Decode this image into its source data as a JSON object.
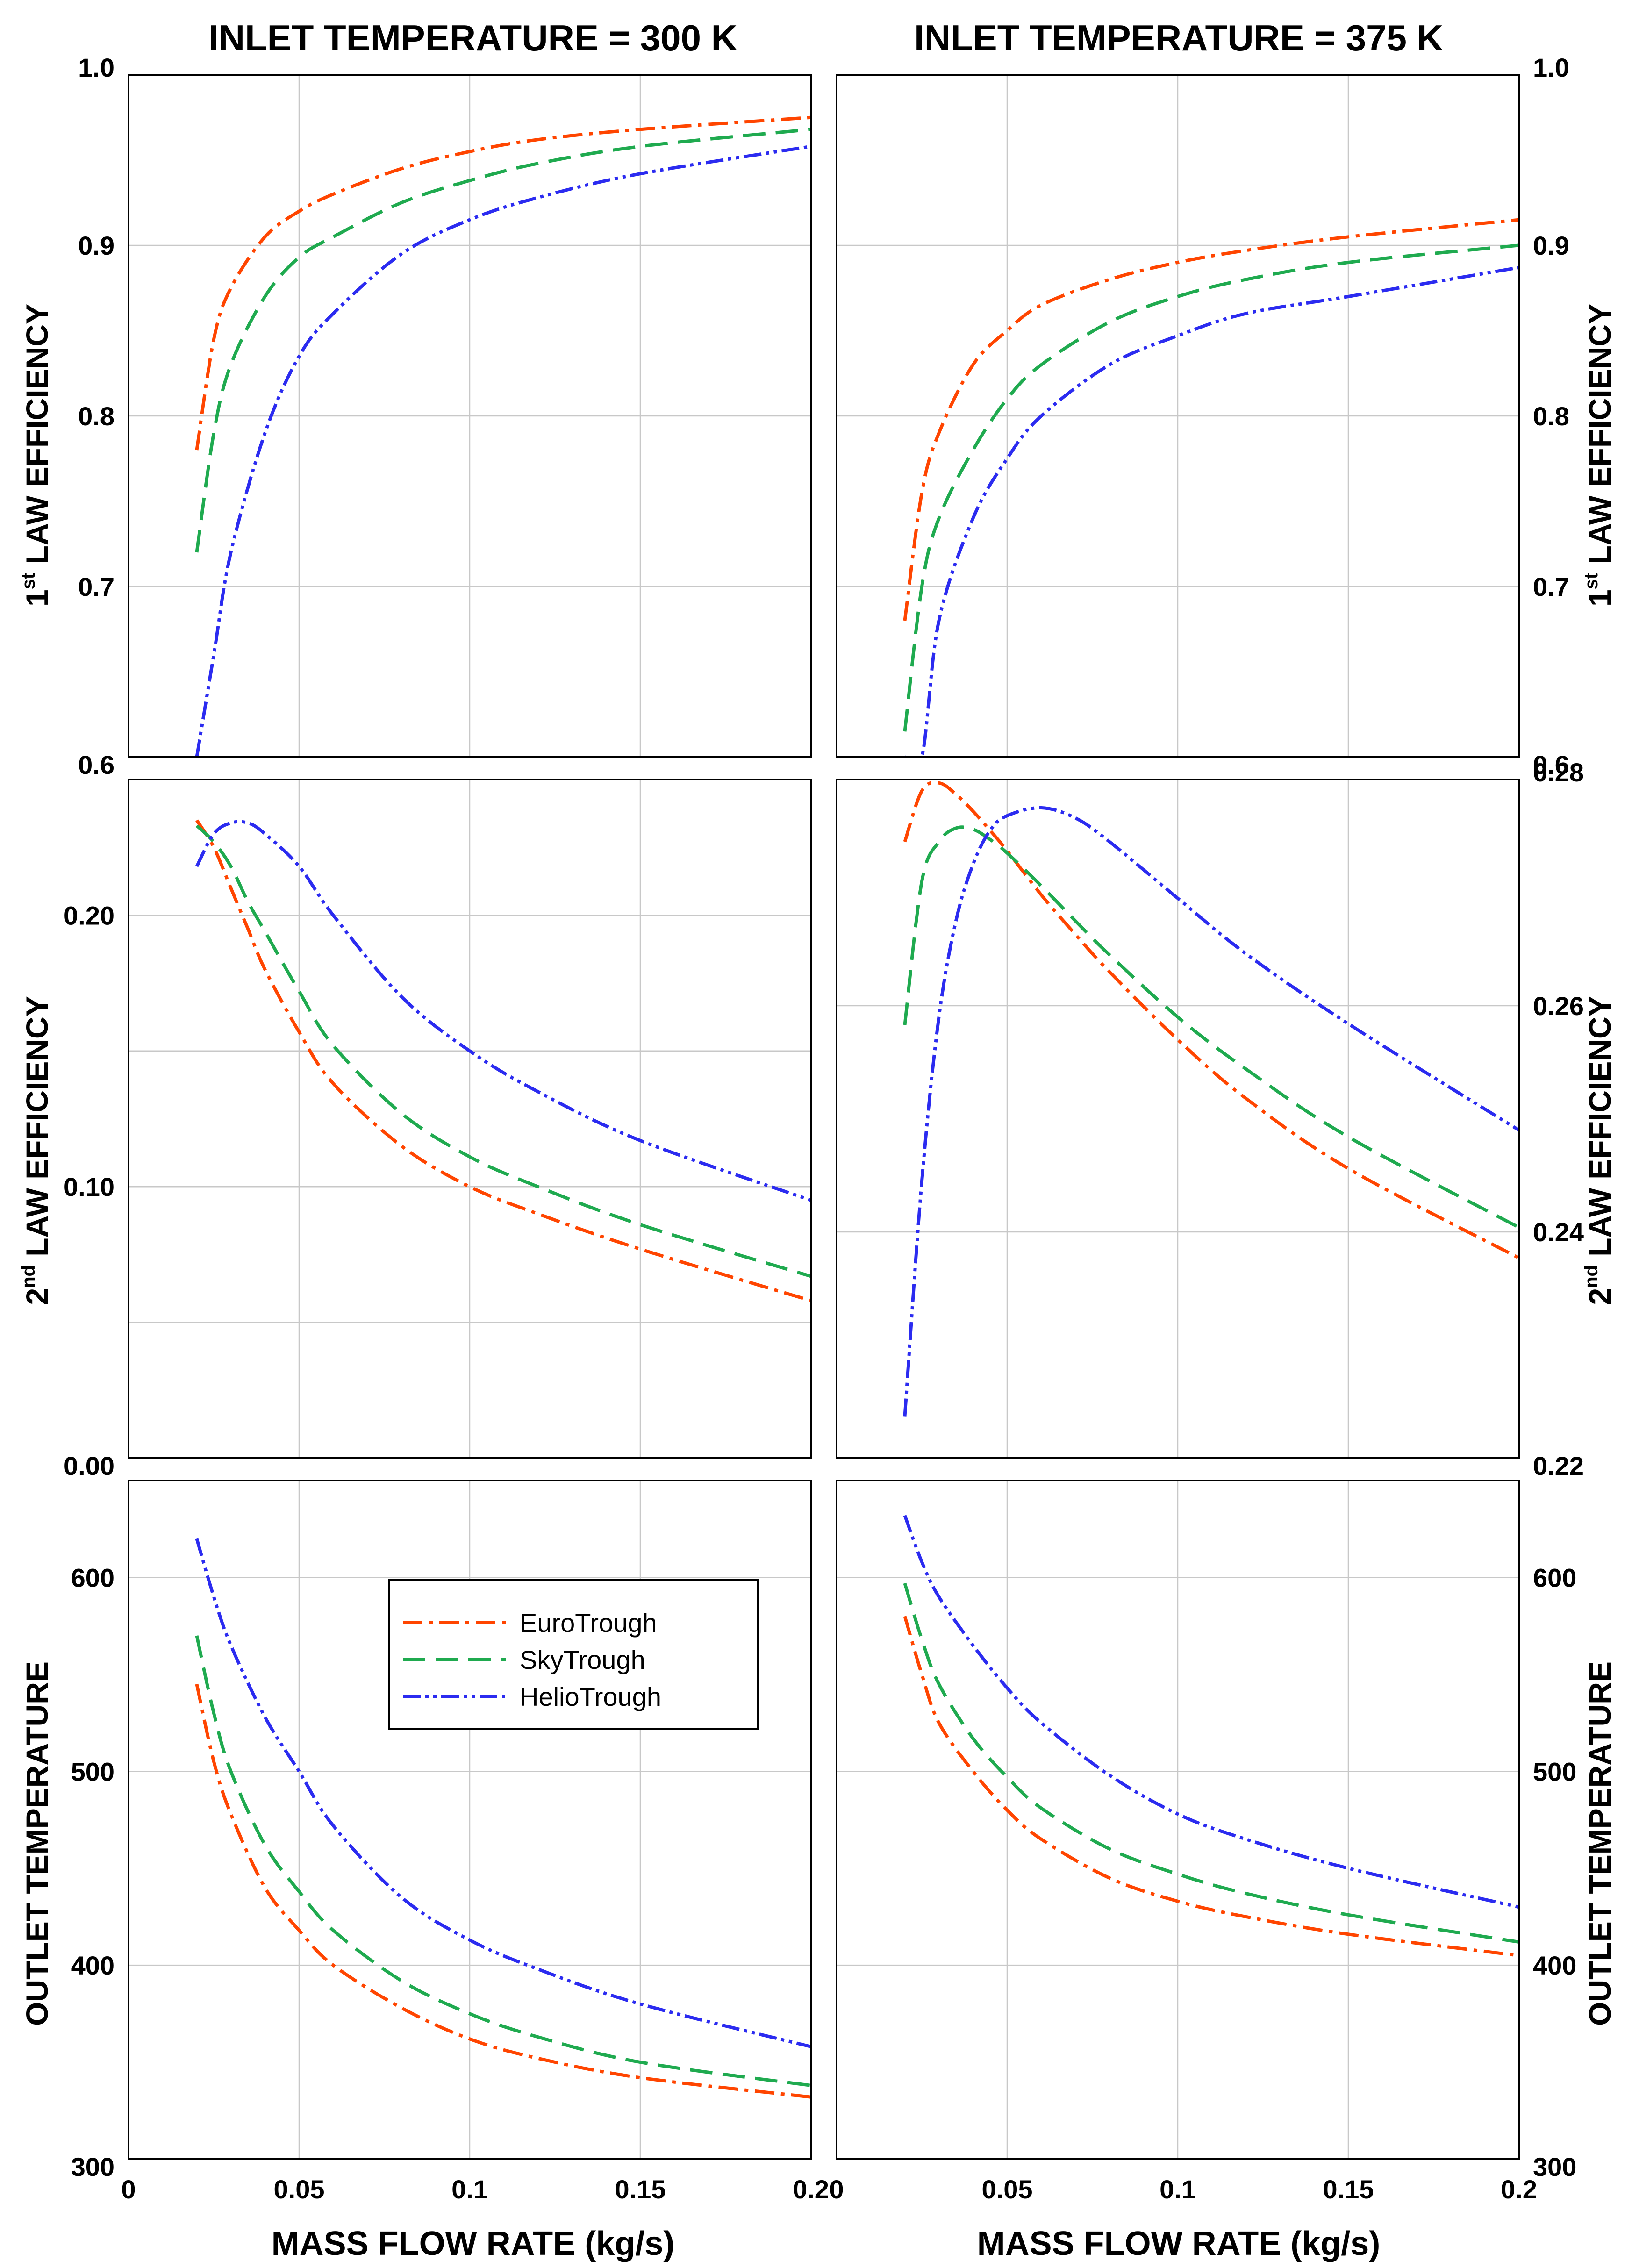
{
  "figure": {
    "col_titles": [
      "INLET TEMPERATURE = 300 K",
      "INLET TEMPERATURE = 375 K"
    ],
    "xlabel": "MASS FLOW RATE (kg/s)",
    "row_labels": [
      {
        "prefix": "1",
        "sup": "st",
        "rest": " LAW EFFICIENCY"
      },
      {
        "prefix": "2",
        "sup": "nd",
        "rest": " LAW EFFICIENCY"
      },
      {
        "prefix": "",
        "sup": "",
        "rest": "OUTLET TEMPERATURE"
      }
    ]
  },
  "series_colors": {
    "EuroTrough": "#ff4500",
    "SkyTrough": "#1faa4f",
    "HelioTrough": "#2b2bf0"
  },
  "legend": {
    "entries": [
      "EuroTrough",
      "SkyTrough",
      "HelioTrough"
    ],
    "location": "upper-center of bottom-left panel"
  },
  "chart_data": [
    {
      "type": "line",
      "panel": "top-left",
      "title": "INLET TEMPERATURE = 300 K",
      "xlabel": "",
      "ylabel": "1st LAW EFFICIENCY",
      "xlim": [
        0,
        0.2
      ],
      "ylim": [
        0.6,
        1.0
      ],
      "xticks": [
        0,
        0.05,
        0.1,
        0.15,
        0.2
      ],
      "xtick_labels": [],
      "yticks": [
        0.6,
        0.7,
        0.8,
        0.9,
        1.0
      ],
      "ytick_labels": [
        "0.6",
        "0.7",
        "0.8",
        "0.9",
        "1.0"
      ],
      "ytick_side": "left",
      "x": [
        0.02,
        0.025,
        0.03,
        0.04,
        0.05,
        0.06,
        0.08,
        0.1,
        0.12,
        0.15,
        0.2
      ],
      "series": [
        {
          "name": "EuroTrough",
          "values": [
            0.78,
            0.845,
            0.875,
            0.905,
            0.92,
            0.93,
            0.945,
            0.955,
            0.962,
            0.968,
            0.975
          ]
        },
        {
          "name": "SkyTrough",
          "values": [
            0.72,
            0.79,
            0.83,
            0.87,
            0.893,
            0.905,
            0.925,
            0.938,
            0.948,
            0.958,
            0.968
          ]
        },
        {
          "name": "HelioTrough",
          "values": [
            0.6,
            0.66,
            0.72,
            0.79,
            0.835,
            0.86,
            0.895,
            0.915,
            0.928,
            0.942,
            0.958
          ]
        }
      ]
    },
    {
      "type": "line",
      "panel": "top-right",
      "title": "INLET TEMPERATURE = 375 K",
      "xlabel": "",
      "ylabel": "1st LAW EFFICIENCY",
      "xlim": [
        0,
        0.2
      ],
      "ylim": [
        0.6,
        1.0
      ],
      "xticks": [
        0,
        0.05,
        0.1,
        0.15,
        0.2
      ],
      "xtick_labels": [],
      "yticks": [
        0.6,
        0.7,
        0.8,
        0.9,
        1.0
      ],
      "ytick_labels": [
        "0.6",
        "0.7",
        "0.8",
        "0.9",
        "1.0"
      ],
      "ytick_side": "right",
      "x": [
        0.02,
        0.025,
        0.03,
        0.04,
        0.05,
        0.06,
        0.08,
        0.1,
        0.12,
        0.15,
        0.2
      ],
      "series": [
        {
          "name": "EuroTrough",
          "values": [
            0.68,
            0.755,
            0.79,
            0.83,
            0.85,
            0.865,
            0.88,
            0.89,
            0.897,
            0.905,
            0.915
          ]
        },
        {
          "name": "SkyTrough",
          "values": [
            0.615,
            0.7,
            0.74,
            0.78,
            0.81,
            0.83,
            0.855,
            0.87,
            0.88,
            0.89,
            0.9
          ]
        },
        {
          "name": "HelioTrough",
          "values": [
            0.6,
            0.6,
            0.68,
            0.74,
            0.775,
            0.8,
            0.83,
            0.847,
            0.86,
            0.87,
            0.887
          ]
        }
      ]
    },
    {
      "type": "line",
      "panel": "middle-left",
      "title": "",
      "xlabel": "",
      "ylabel": "2nd LAW EFFICIENCY",
      "xlim": [
        0,
        0.2
      ],
      "ylim": [
        0.0,
        0.25
      ],
      "xticks": [
        0,
        0.05,
        0.1,
        0.15,
        0.2
      ],
      "xtick_labels": [],
      "yticks": [
        0.0,
        0.05,
        0.1,
        0.15,
        0.2,
        0.25
      ],
      "ytick_labels": [
        "0.00",
        "",
        "0.10",
        "",
        "0.20",
        ""
      ],
      "ytick_side": "left",
      "x": [
        0.02,
        0.025,
        0.03,
        0.035,
        0.04,
        0.05,
        0.06,
        0.08,
        0.1,
        0.12,
        0.15,
        0.2
      ],
      "series": [
        {
          "name": "EuroTrough",
          "values": [
            0.235,
            0.225,
            0.21,
            0.195,
            0.18,
            0.157,
            0.138,
            0.115,
            0.1,
            0.09,
            0.077,
            0.058
          ]
        },
        {
          "name": "SkyTrough",
          "values": [
            0.233,
            0.227,
            0.218,
            0.205,
            0.194,
            0.172,
            0.152,
            0.127,
            0.111,
            0.1,
            0.086,
            0.067
          ]
        },
        {
          "name": "HelioTrough",
          "values": [
            0.218,
            0.23,
            0.234,
            0.234,
            0.23,
            0.218,
            0.2,
            0.17,
            0.15,
            0.135,
            0.117,
            0.095
          ]
        }
      ]
    },
    {
      "type": "line",
      "panel": "middle-right",
      "title": "",
      "xlabel": "",
      "ylabel": "2nd LAW EFFICIENCY",
      "xlim": [
        0,
        0.2
      ],
      "ylim": [
        0.22,
        0.28
      ],
      "xticks": [
        0,
        0.05,
        0.1,
        0.15,
        0.2
      ],
      "xtick_labels": [],
      "yticks": [
        0.22,
        0.24,
        0.26,
        0.28
      ],
      "ytick_labels": [
        "0.22",
        "0.24",
        "0.26",
        "0.28"
      ],
      "ytick_side": "right",
      "x": [
        0.02,
        0.025,
        0.03,
        0.035,
        0.04,
        0.045,
        0.05,
        0.06,
        0.07,
        0.08,
        0.1,
        0.12,
        0.15,
        0.2
      ],
      "series": [
        {
          "name": "EuroTrough",
          "values": [
            0.2745,
            0.279,
            0.2797,
            0.2787,
            0.2772,
            0.2755,
            0.2737,
            0.2698,
            0.2663,
            0.263,
            0.257,
            0.2518,
            0.2456,
            0.2377
          ]
        },
        {
          "name": "SkyTrough",
          "values": [
            0.2583,
            0.271,
            0.2745,
            0.2757,
            0.2756,
            0.2747,
            0.2735,
            0.2706,
            0.2675,
            0.2645,
            0.259,
            0.2544,
            0.2484,
            0.2404
          ]
        },
        {
          "name": "HelioTrough",
          "values": [
            0.2237,
            0.2445,
            0.259,
            0.2675,
            0.2725,
            0.2755,
            0.2768,
            0.2775,
            0.2766,
            0.2745,
            0.2695,
            0.2646,
            0.2584,
            0.249
          ]
        }
      ]
    },
    {
      "type": "line",
      "panel": "bottom-left",
      "title": "",
      "xlabel": "MASS FLOW RATE (kg/s)",
      "ylabel": "OUTLET TEMPERATURE",
      "xlim": [
        0,
        0.2
      ],
      "ylim": [
        300,
        650
      ],
      "xticks": [
        0,
        0.05,
        0.1,
        0.15,
        0.2
      ],
      "xtick_labels": [
        "0",
        "0.05",
        "0.1",
        "0.15",
        "0.2"
      ],
      "yticks": [
        300,
        400,
        500,
        600
      ],
      "ytick_labels": [
        "300",
        "400",
        "500",
        "600"
      ],
      "ytick_side": "left",
      "x": [
        0.02,
        0.025,
        0.03,
        0.04,
        0.05,
        0.06,
        0.08,
        0.1,
        0.12,
        0.15,
        0.2
      ],
      "series": [
        {
          "name": "EuroTrough",
          "values": [
            545,
            505,
            478,
            440,
            418,
            400,
            378,
            362,
            352,
            342,
            332
          ]
        },
        {
          "name": "SkyTrough",
          "values": [
            570,
            530,
            500,
            462,
            438,
            418,
            392,
            375,
            363,
            350,
            338
          ]
        },
        {
          "name": "HelioTrough",
          "values": [
            620,
            590,
            565,
            528,
            500,
            472,
            435,
            413,
            398,
            380,
            358
          ]
        }
      ]
    },
    {
      "type": "line",
      "panel": "bottom-right",
      "title": "",
      "xlabel": "MASS FLOW RATE (kg/s)",
      "ylabel": "OUTLET TEMPERATURE",
      "xlim": [
        0,
        0.2
      ],
      "ylim": [
        300,
        650
      ],
      "xticks": [
        0,
        0.05,
        0.1,
        0.15,
        0.2
      ],
      "xtick_labels": [
        "0",
        "0.05",
        "0.1",
        "0.15",
        "0.2"
      ],
      "yticks": [
        300,
        400,
        500,
        600
      ],
      "ytick_labels": [
        "300",
        "400",
        "500",
        "600"
      ],
      "ytick_side": "right",
      "x": [
        0.02,
        0.025,
        0.03,
        0.04,
        0.05,
        0.06,
        0.08,
        0.1,
        0.12,
        0.15,
        0.2
      ],
      "series": [
        {
          "name": "EuroTrough",
          "values": [
            580,
            550,
            525,
            500,
            480,
            465,
            445,
            433,
            425,
            416,
            405
          ]
        },
        {
          "name": "SkyTrough",
          "values": [
            597,
            568,
            545,
            517,
            497,
            481,
            460,
            447,
            437,
            426,
            412
          ]
        },
        {
          "name": "HelioTrough",
          "values": [
            632,
            608,
            590,
            565,
            543,
            525,
            498,
            478,
            465,
            450,
            430
          ]
        }
      ]
    }
  ]
}
